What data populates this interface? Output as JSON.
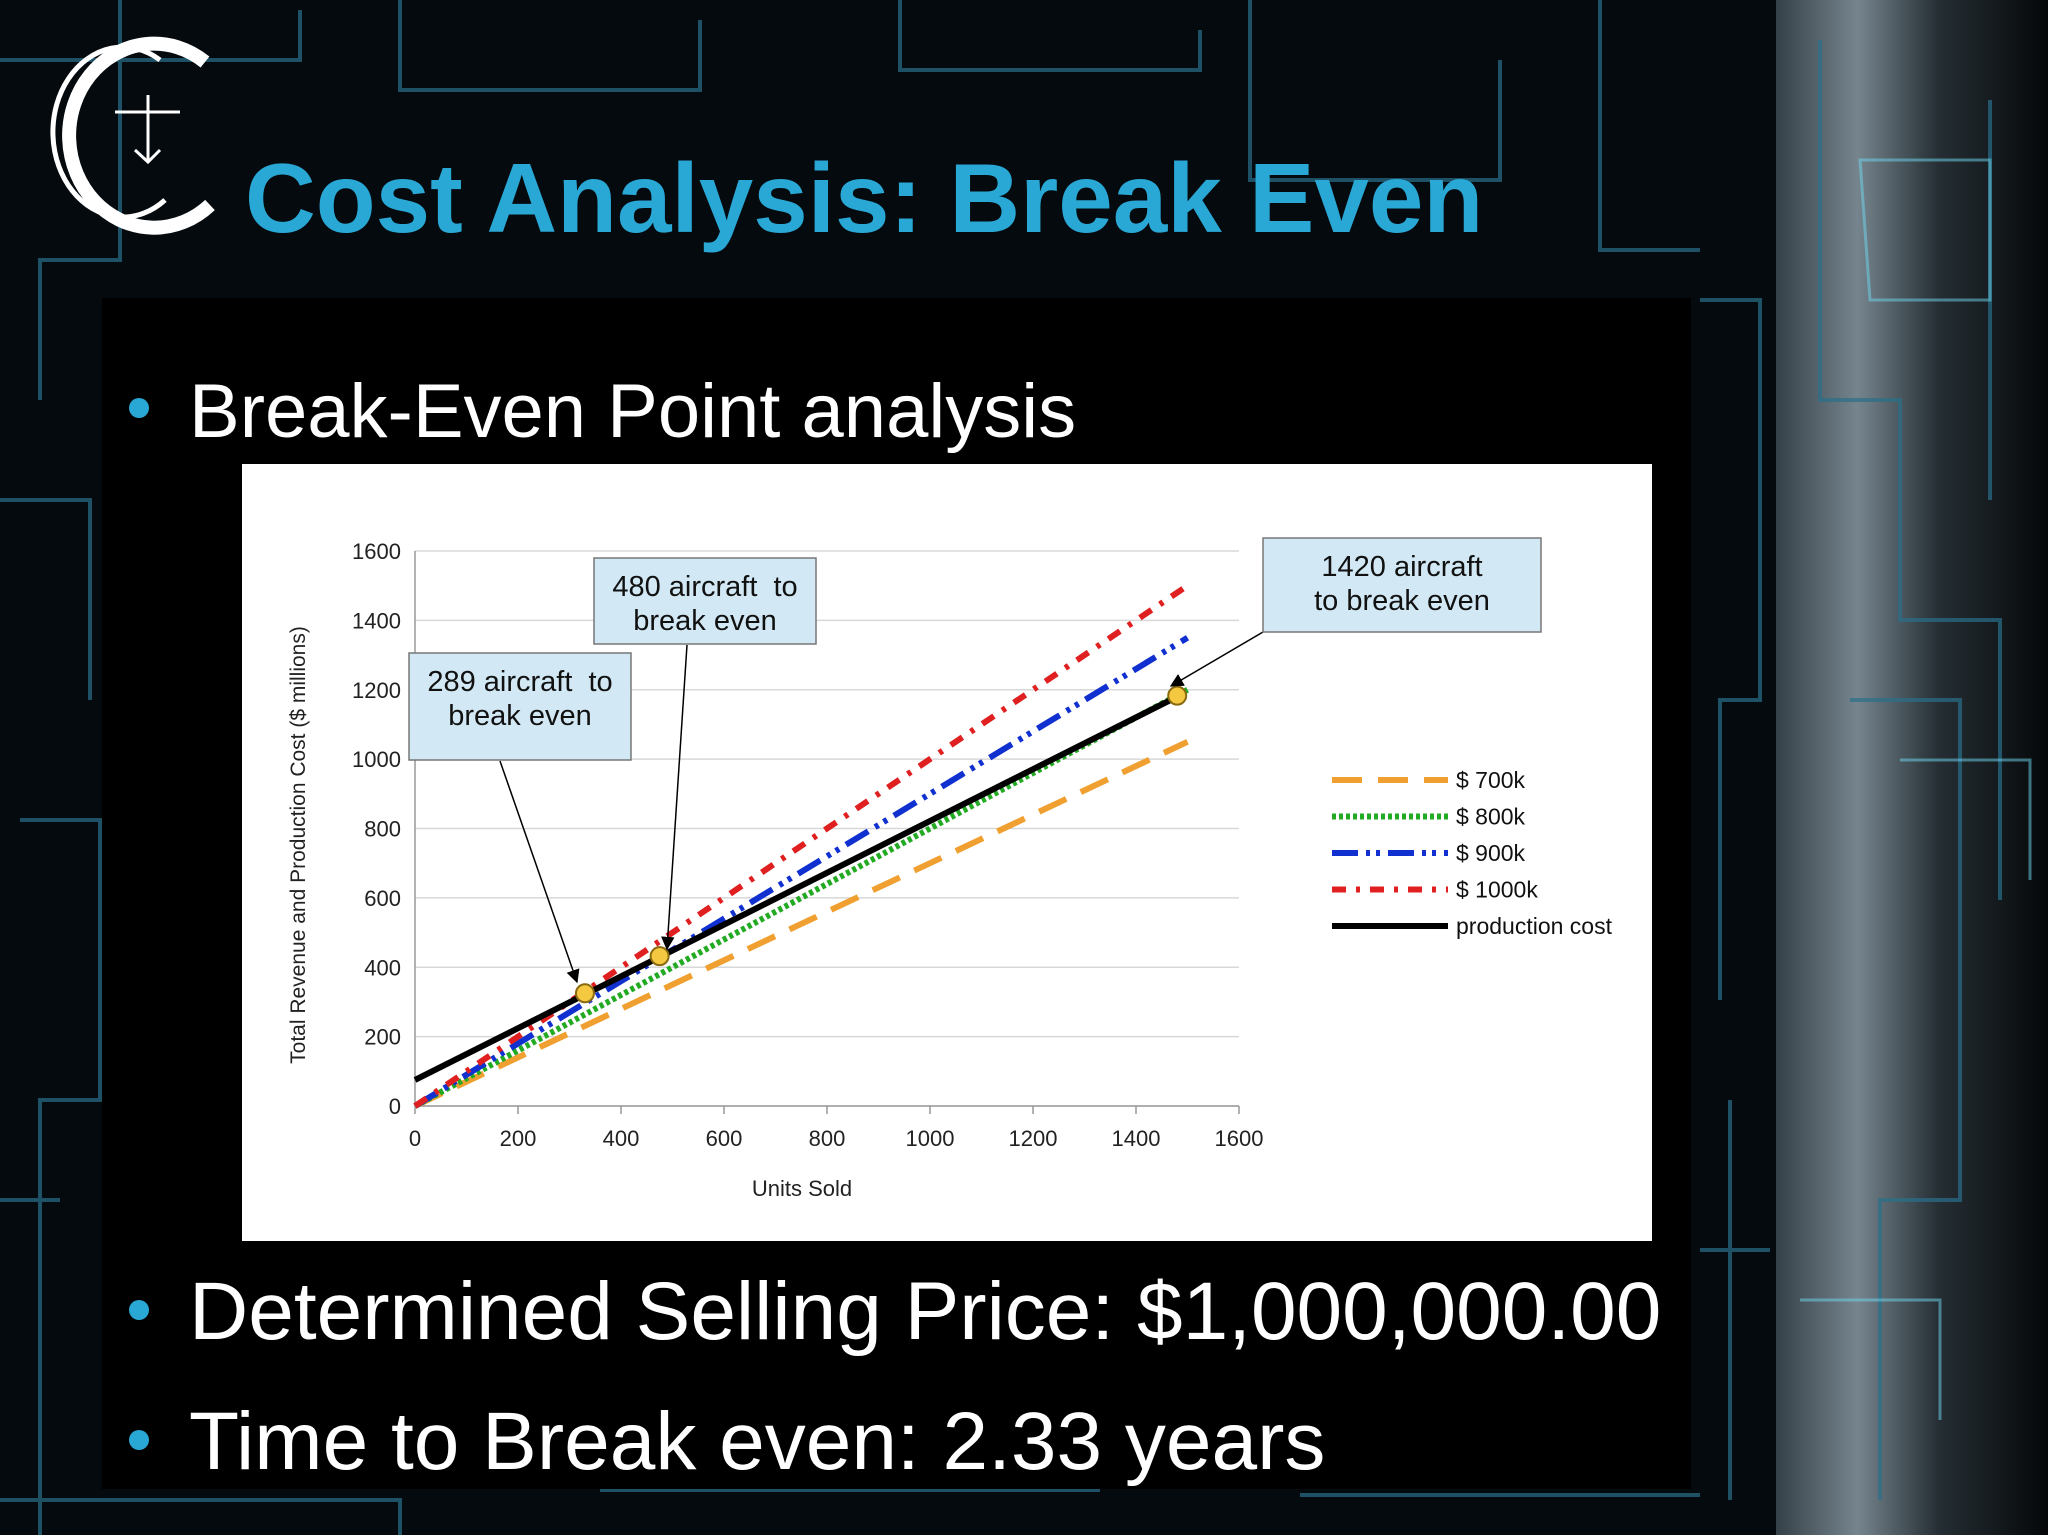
{
  "header": {
    "title": "Cost Analysis: Break Even"
  },
  "bullets": [
    "Break-Even Point analysis",
    "Determined Selling Price: $1,000,000.00",
    "Time to Break even: 2.33 years"
  ],
  "chart_data": {
    "type": "line",
    "x_label": "Units Sold",
    "y_label": "Total Revenue and Production Cost ($ millions)",
    "xlim": [
      0,
      1600
    ],
    "ylim": [
      0,
      1600
    ],
    "xticks": [
      0,
      200,
      400,
      600,
      800,
      1000,
      1200,
      1400,
      1600
    ],
    "yticks": [
      0,
      200,
      400,
      600,
      800,
      1000,
      1200,
      1400,
      1600
    ],
    "grid": true,
    "legend": "right",
    "series": [
      {
        "name": "$ 700k",
        "color": "#f0a030",
        "x": [
          0,
          1500
        ],
        "values": [
          0,
          1050
        ]
      },
      {
        "name": "$ 800k",
        "color": "#22aa22",
        "x": [
          0,
          1500
        ],
        "values": [
          0,
          1200
        ]
      },
      {
        "name": "$ 900k",
        "color": "#1030d0",
        "x": [
          0,
          1500
        ],
        "values": [
          0,
          1350
        ]
      },
      {
        "name": "$ 1000k",
        "color": "#e02020",
        "x": [
          0,
          1500
        ],
        "values": [
          0,
          1500
        ]
      },
      {
        "name": "production cost",
        "color": "#000000",
        "x": [
          0,
          1480
        ],
        "values": [
          75,
          1180
        ]
      }
    ],
    "markers": {
      "color": "#f5c842",
      "x": [
        330,
        475,
        1480
      ],
      "values": [
        325,
        432,
        1183
      ]
    },
    "annotations": [
      {
        "lines": [
          "289 aircraft  to",
          "break even"
        ]
      },
      {
        "lines": [
          "480 aircraft  to",
          "break even"
        ]
      },
      {
        "lines": [
          "1420 aircraft",
          "to break even"
        ]
      }
    ]
  }
}
